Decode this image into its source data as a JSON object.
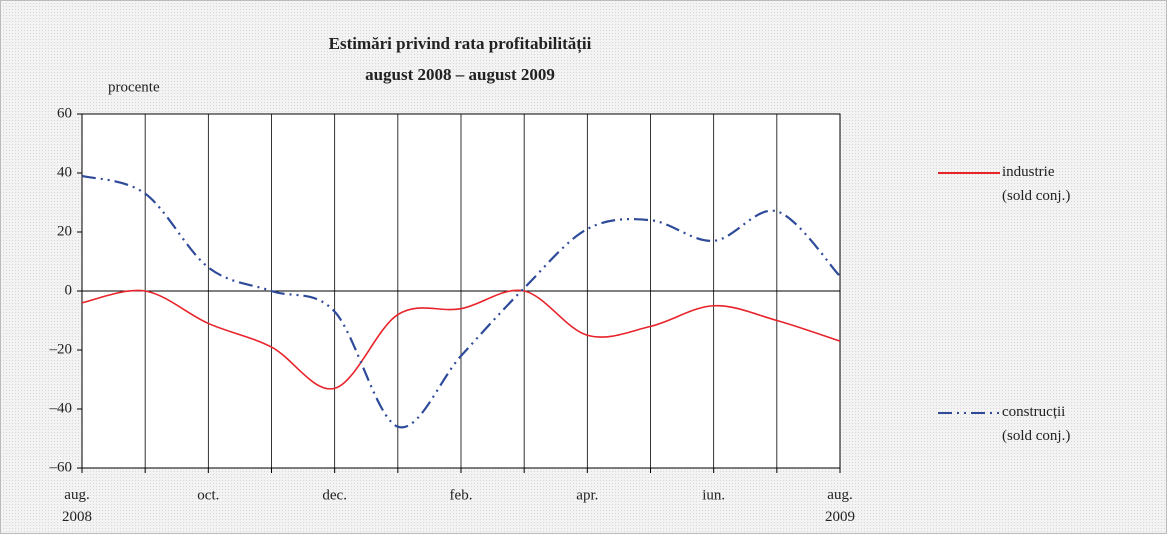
{
  "chart_data": {
    "type": "line",
    "title": "Estimări privind rata profitabilității",
    "subtitle": "august 2008 – august 2009",
    "y_label": "procente",
    "categories": [
      "aug. 2008",
      null,
      "oct.",
      null,
      "dec.",
      null,
      "feb.",
      null,
      "apr.",
      null,
      "iun.",
      null,
      "aug. 2009"
    ],
    "series": [
      {
        "name": "industrie (sold conj.)",
        "color": "#e8232a",
        "dash": "solid",
        "values": [
          -4,
          0,
          -11,
          -19,
          -33,
          -8,
          -6,
          0,
          -15,
          -12,
          -5,
          -10,
          -17
        ]
      },
      {
        "name": "construcții (sold conj.)",
        "color": "#2e4b9a",
        "dash": "dashdot",
        "values": [
          39,
          33,
          8,
          0,
          -7,
          -46,
          -22,
          1,
          21,
          24,
          17,
          27,
          5
        ]
      }
    ],
    "ylim": [
      -60,
      60
    ],
    "yticks": [
      60,
      40,
      20,
      0,
      {
        "value": -20,
        "label": "–20"
      },
      {
        "value": -40,
        "label": "–40"
      },
      {
        "value": -60,
        "label": "–60"
      }
    ],
    "x_grid": true,
    "zero_line": true,
    "legend": "right"
  }
}
